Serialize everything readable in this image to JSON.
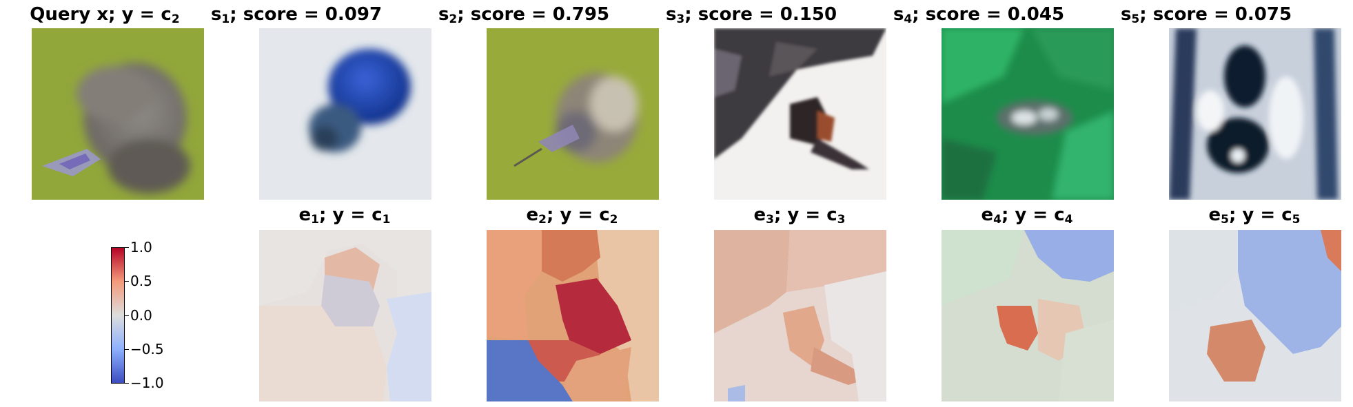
{
  "query_panel": {
    "label": "Query x",
    "class_base": "y = c",
    "class_sub": "2"
  },
  "similar": [
    {
      "base": "s",
      "sub": "1",
      "score_text": "; score = 0.097",
      "score": 0.097
    },
    {
      "base": "s",
      "sub": "2",
      "score_text": "; score = 0.795",
      "score": 0.795
    },
    {
      "base": "s",
      "sub": "3",
      "score_text": "; score = 0.150",
      "score": 0.15
    },
    {
      "base": "s",
      "sub": "4",
      "score_text": "; score = 0.045",
      "score": 0.045
    },
    {
      "base": "s",
      "sub": "5",
      "score_text": "; score = 0.075",
      "score": 0.075
    }
  ],
  "explanations": [
    {
      "base": "e",
      "sub": "1",
      "sep": "; y = c",
      "class_sub": "1"
    },
    {
      "base": "e",
      "sub": "2",
      "sep": "; y = c",
      "class_sub": "2"
    },
    {
      "base": "e",
      "sub": "3",
      "sep": "; y = c",
      "class_sub": "3"
    },
    {
      "base": "e",
      "sub": "4",
      "sep": "; y = c",
      "class_sub": "4"
    },
    {
      "base": "e",
      "sub": "5",
      "sep": "; y = c",
      "class_sub": "5"
    }
  ],
  "colorbar": {
    "ticks": [
      "1.0",
      "0.5",
      "0.0",
      "−0.5",
      "−1.0"
    ],
    "colormap": "coolwarm",
    "colors": {
      "high": "#b40426",
      "mid": "#dddddd",
      "low": "#3b4cc0"
    }
  },
  "chart_data": {
    "type": "heatmap",
    "title": "",
    "panels": [
      "Query x; y = c2",
      "s1; score = 0.097",
      "s2; score = 0.795",
      "s3; score = 0.150",
      "s4; score = 0.045",
      "s5; score = 0.075",
      "e1; y = c1",
      "e2; y = c2",
      "e3; y = c3",
      "e4; y = c4",
      "e5; y = c5"
    ],
    "scores": [
      0.097,
      0.795,
      0.15,
      0.045,
      0.075
    ],
    "colorbar_range": [
      -1.0,
      1.0
    ],
    "colorbar_ticks": [
      1.0,
      0.5,
      0.0,
      -0.5,
      -1.0
    ]
  }
}
